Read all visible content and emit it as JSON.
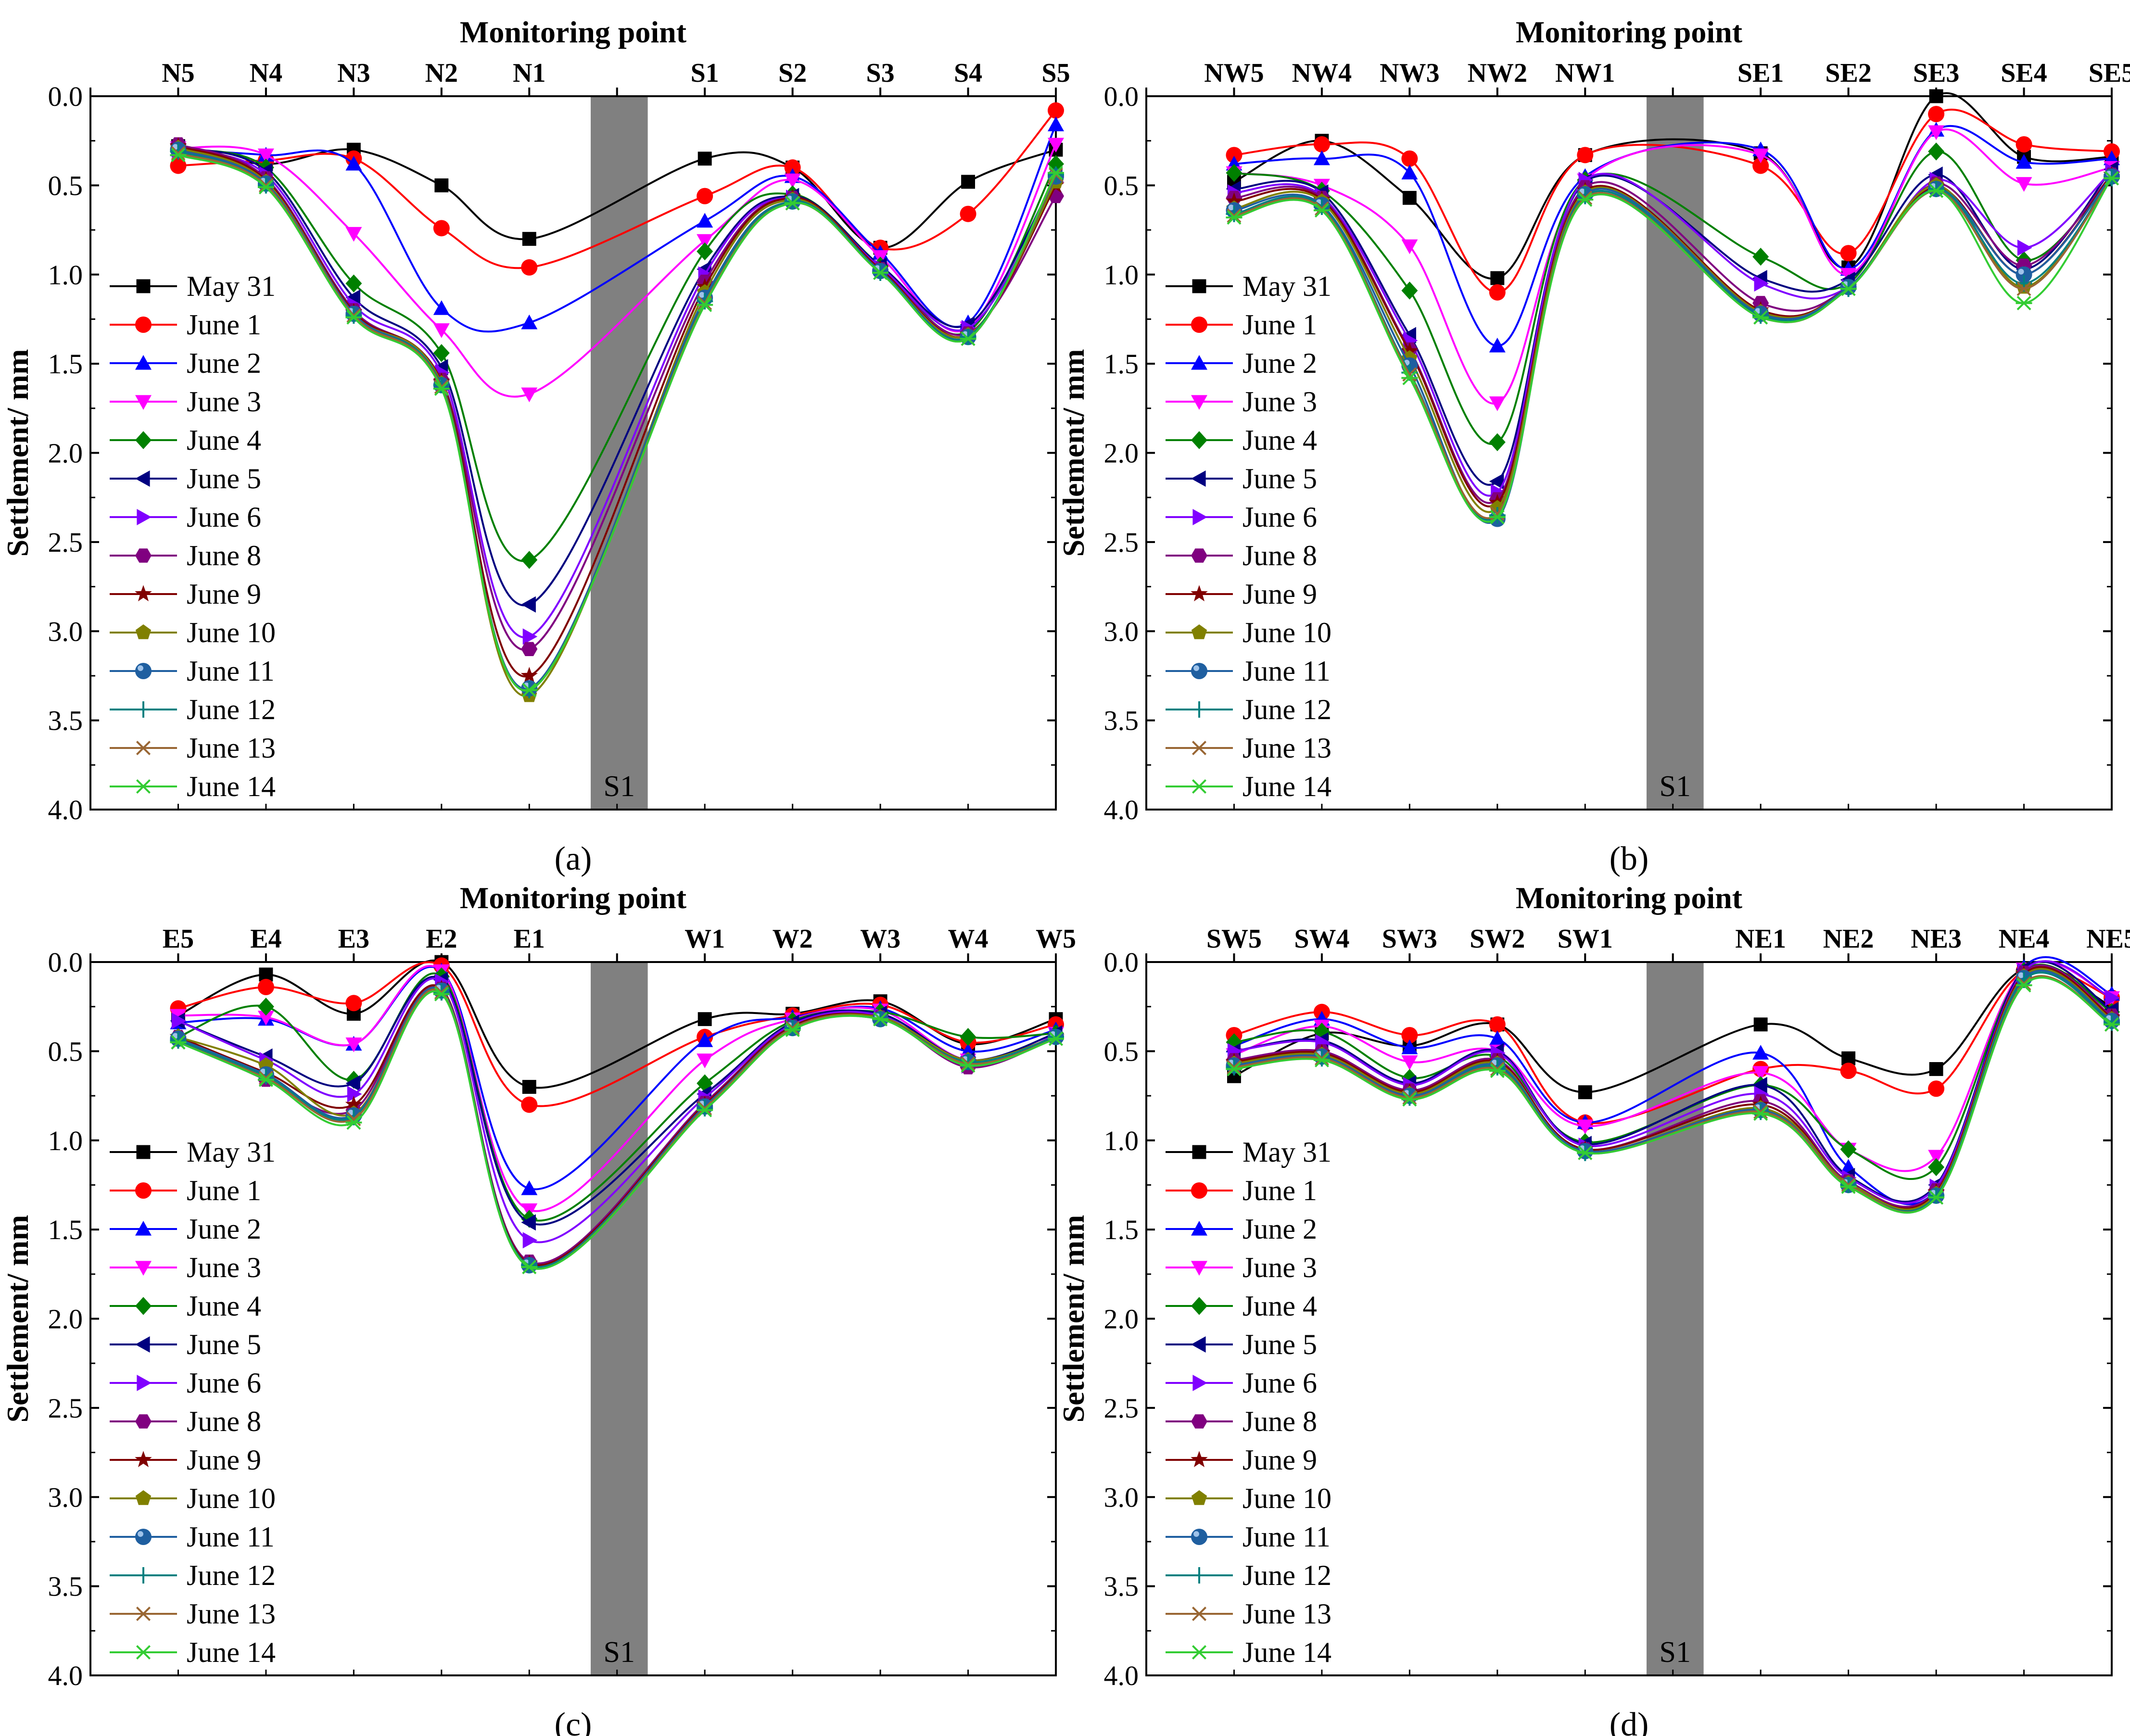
{
  "figure": {
    "x_axis_title": "Monitoring point",
    "y_axis_title": "Settlement/ mm",
    "band_label": "S1"
  },
  "legend": {
    "entries": [
      "May 31",
      "June 1",
      "June 2",
      "June 3",
      "June 4",
      "June 5",
      "June 6",
      "June 8",
      "June 9",
      "June 10",
      "June 11",
      "June 12",
      "June 13",
      "June 14"
    ]
  },
  "series_styles": [
    {
      "color": "#000000",
      "marker": "square"
    },
    {
      "color": "#ff0000",
      "marker": "circle"
    },
    {
      "color": "#0000ff",
      "marker": "triangle-up"
    },
    {
      "color": "#ff00ff",
      "marker": "triangle-down"
    },
    {
      "color": "#008000",
      "marker": "diamond"
    },
    {
      "color": "#000080",
      "marker": "triangle-left"
    },
    {
      "color": "#8000ff",
      "marker": "triangle-right"
    },
    {
      "color": "#800080",
      "marker": "hexagon"
    },
    {
      "color": "#800000",
      "marker": "star"
    },
    {
      "color": "#808000",
      "marker": "pentagon"
    },
    {
      "color": "#1f5fa0",
      "marker": "sphere"
    },
    {
      "color": "#008080",
      "marker": "plus"
    },
    {
      "color": "#996633",
      "marker": "x"
    },
    {
      "color": "#33cc33",
      "marker": "asterisk"
    }
  ],
  "chart_data": [
    {
      "type": "line",
      "panel_label": "(a)",
      "title": "",
      "xlabel": "Monitoring point",
      "ylabel": "Settlement/ mm",
      "ylim": [
        0,
        4
      ],
      "y_inverted": true,
      "yticks": [
        "0.0",
        "0.5",
        "1.0",
        "1.5",
        "2.0",
        "2.5",
        "3.0",
        "3.5",
        "4.0"
      ],
      "xlim": [
        0,
        11
      ],
      "categories": [
        "N5",
        "N4",
        "N3",
        "N2",
        "N1",
        "S1",
        "S2",
        "S3",
        "S4",
        "S5"
      ],
      "x": [
        1,
        2,
        3,
        4,
        5,
        7,
        8,
        9,
        10,
        11
      ],
      "band": {
        "label": "S1",
        "x_range": [
          5.7,
          6.35
        ]
      },
      "series": [
        {
          "name": "May 31",
          "values": [
            0.28,
            0.38,
            0.3,
            0.5,
            0.8,
            0.35,
            0.4,
            0.85,
            0.48,
            0.3
          ]
        },
        {
          "name": "June 1",
          "values": [
            0.39,
            0.36,
            0.35,
            0.74,
            0.96,
            0.56,
            0.4,
            0.85,
            0.66,
            0.08
          ]
        },
        {
          "name": "June 2",
          "values": [
            0.3,
            0.33,
            0.38,
            1.19,
            1.27,
            0.7,
            0.45,
            0.88,
            1.27,
            0.16
          ]
        },
        {
          "name": "June 3",
          "values": [
            0.29,
            0.33,
            0.77,
            1.31,
            1.67,
            0.81,
            0.47,
            0.9,
            1.3,
            0.27
          ]
        },
        {
          "name": "June 4",
          "values": [
            0.3,
            0.4,
            1.05,
            1.44,
            2.6,
            0.87,
            0.55,
            0.95,
            1.32,
            0.38
          ]
        },
        {
          "name": "June 5",
          "values": [
            0.29,
            0.42,
            1.13,
            1.52,
            2.85,
            0.97,
            0.56,
            0.95,
            1.28,
            0.45
          ]
        },
        {
          "name": "June 6",
          "values": [
            0.3,
            0.44,
            1.17,
            1.55,
            3.03,
            1.0,
            0.57,
            0.96,
            1.3,
            0.48
          ]
        },
        {
          "name": "June 8",
          "values": [
            0.27,
            0.46,
            1.2,
            1.59,
            3.1,
            1.04,
            0.57,
            0.97,
            1.33,
            0.56
          ]
        },
        {
          "name": "June 9",
          "values": [
            0.28,
            0.47,
            1.21,
            1.6,
            3.25,
            1.07,
            0.57,
            0.97,
            1.34,
            0.5
          ]
        },
        {
          "name": "June 10",
          "values": [
            0.29,
            0.48,
            1.22,
            1.61,
            3.36,
            1.1,
            0.58,
            0.98,
            1.34,
            0.48
          ]
        },
        {
          "name": "June 11",
          "values": [
            0.3,
            0.49,
            1.22,
            1.62,
            3.32,
            1.13,
            0.59,
            0.98,
            1.35,
            0.45
          ]
        },
        {
          "name": "June 12",
          "values": [
            0.31,
            0.5,
            1.23,
            1.62,
            3.33,
            1.15,
            0.59,
            0.99,
            1.35,
            0.44
          ]
        },
        {
          "name": "June 13",
          "values": [
            0.32,
            0.5,
            1.23,
            1.63,
            3.33,
            1.16,
            0.6,
            0.99,
            1.36,
            0.44
          ]
        },
        {
          "name": "June 14",
          "values": [
            0.33,
            0.51,
            1.24,
            1.64,
            3.33,
            1.17,
            0.6,
            0.99,
            1.36,
            0.43
          ]
        }
      ]
    },
    {
      "type": "line",
      "panel_label": "(b)",
      "title": "",
      "xlabel": "Monitoring point",
      "ylabel": "Settlement/ mm",
      "ylim": [
        0,
        4
      ],
      "y_inverted": true,
      "yticks": [
        "0.0",
        "0.5",
        "1.0",
        "1.5",
        "2.0",
        "2.5",
        "3.0",
        "3.5",
        "4.0"
      ],
      "xlim": [
        0,
        11
      ],
      "categories": [
        "NW5",
        "NW4",
        "NW3",
        "NW2",
        "NW1",
        "SE1",
        "SE2",
        "SE3",
        "SE4",
        "SE5"
      ],
      "x": [
        1,
        2,
        3,
        4,
        5,
        7,
        8,
        9,
        10,
        11
      ],
      "band": {
        "label": "S1",
        "x_range": [
          5.7,
          6.35
        ]
      },
      "series": [
        {
          "name": "May 31",
          "values": [
            0.48,
            0.25,
            0.57,
            1.02,
            0.33,
            0.32,
            0.96,
            0.0,
            0.34,
            0.34
          ]
        },
        {
          "name": "June 1",
          "values": [
            0.33,
            0.27,
            0.35,
            1.1,
            0.33,
            0.39,
            0.88,
            0.1,
            0.27,
            0.31
          ]
        },
        {
          "name": "June 2",
          "values": [
            0.38,
            0.35,
            0.43,
            1.4,
            0.45,
            0.3,
            0.97,
            0.19,
            0.37,
            0.35
          ]
        },
        {
          "name": "June 3",
          "values": [
            0.43,
            0.5,
            0.84,
            1.72,
            0.47,
            0.33,
            1.0,
            0.2,
            0.49,
            0.4
          ]
        },
        {
          "name": "June 4",
          "values": [
            0.43,
            0.53,
            1.09,
            1.94,
            0.47,
            0.9,
            1.05,
            0.31,
            0.92,
            0.45
          ]
        },
        {
          "name": "June 5",
          "values": [
            0.52,
            0.54,
            1.34,
            2.16,
            0.48,
            1.02,
            1.03,
            0.44,
            0.97,
            0.41
          ]
        },
        {
          "name": "June 6",
          "values": [
            0.54,
            0.56,
            1.37,
            2.22,
            0.47,
            1.05,
            1.07,
            0.47,
            0.85,
            0.42
          ]
        },
        {
          "name": "June 8",
          "values": [
            0.57,
            0.57,
            1.42,
            2.26,
            0.51,
            1.16,
            1.07,
            0.49,
            0.95,
            0.44
          ]
        },
        {
          "name": "June 9",
          "values": [
            0.59,
            0.58,
            1.43,
            2.28,
            0.53,
            1.2,
            1.07,
            0.51,
            1.0,
            0.44
          ]
        },
        {
          "name": "June 10",
          "values": [
            0.63,
            0.59,
            1.47,
            2.31,
            0.54,
            1.21,
            1.07,
            0.5,
            1.07,
            0.45
          ]
        },
        {
          "name": "June 11",
          "values": [
            0.64,
            0.61,
            1.51,
            2.37,
            0.55,
            1.22,
            1.07,
            0.52,
            1.0,
            0.45
          ]
        },
        {
          "name": "June 12",
          "values": [
            0.66,
            0.62,
            1.55,
            2.35,
            0.56,
            1.23,
            1.08,
            0.52,
            1.05,
            0.46
          ]
        },
        {
          "name": "June 13",
          "values": [
            0.67,
            0.63,
            1.56,
            2.34,
            0.57,
            1.24,
            1.08,
            0.53,
            1.08,
            0.46
          ]
        },
        {
          "name": "June 14",
          "values": [
            0.68,
            0.64,
            1.58,
            2.36,
            0.58,
            1.24,
            1.08,
            0.53,
            1.16,
            0.46
          ]
        }
      ]
    },
    {
      "type": "line",
      "panel_label": "(c)",
      "title": "",
      "xlabel": "Monitoring point",
      "ylabel": "Settlement/ mm",
      "ylim": [
        0,
        4
      ],
      "y_inverted": true,
      "yticks": [
        "0.0",
        "0.5",
        "1.0",
        "1.5",
        "2.0",
        "2.5",
        "3.0",
        "3.5",
        "4.0"
      ],
      "xlim": [
        0,
        11
      ],
      "categories": [
        "E5",
        "E4",
        "E3",
        "E2",
        "E1",
        "W1",
        "W2",
        "W3",
        "W4",
        "W5"
      ],
      "x": [
        1,
        2,
        3,
        4,
        5,
        7,
        8,
        9,
        10,
        11
      ],
      "band": {
        "label": "S1",
        "x_range": [
          5.7,
          6.35
        ]
      },
      "series": [
        {
          "name": "May 31",
          "values": [
            0.3,
            0.07,
            0.29,
            0.0,
            0.7,
            0.32,
            0.29,
            0.22,
            0.46,
            0.32
          ]
        },
        {
          "name": "June 1",
          "values": [
            0.26,
            0.14,
            0.23,
            0.02,
            0.8,
            0.42,
            0.3,
            0.24,
            0.45,
            0.35
          ]
        },
        {
          "name": "June 2",
          "values": [
            0.34,
            0.32,
            0.46,
            0.05,
            1.27,
            0.44,
            0.31,
            0.26,
            0.5,
            0.38
          ]
        },
        {
          "name": "June 3",
          "values": [
            0.3,
            0.31,
            0.46,
            0.05,
            1.39,
            0.55,
            0.32,
            0.27,
            0.55,
            0.4
          ]
        },
        {
          "name": "June 4",
          "values": [
            0.42,
            0.25,
            0.66,
            0.08,
            1.44,
            0.68,
            0.33,
            0.28,
            0.42,
            0.4
          ]
        },
        {
          "name": "June 5",
          "values": [
            0.33,
            0.53,
            0.68,
            0.1,
            1.46,
            0.74,
            0.34,
            0.29,
            0.55,
            0.4
          ]
        },
        {
          "name": "June 6",
          "values": [
            0.33,
            0.55,
            0.74,
            0.11,
            1.56,
            0.76,
            0.35,
            0.3,
            0.58,
            0.41
          ]
        },
        {
          "name": "June 8",
          "values": [
            0.42,
            0.66,
            0.83,
            0.15,
            1.68,
            0.79,
            0.36,
            0.31,
            0.59,
            0.42
          ]
        },
        {
          "name": "June 9",
          "values": [
            0.42,
            0.62,
            0.8,
            0.15,
            1.69,
            0.8,
            0.36,
            0.31,
            0.56,
            0.42
          ]
        },
        {
          "name": "June 10",
          "values": [
            0.42,
            0.58,
            0.85,
            0.16,
            1.7,
            0.81,
            0.37,
            0.31,
            0.55,
            0.42
          ]
        },
        {
          "name": "June 11",
          "values": [
            0.43,
            0.63,
            0.86,
            0.16,
            1.7,
            0.81,
            0.37,
            0.32,
            0.56,
            0.42
          ]
        },
        {
          "name": "June 12",
          "values": [
            0.44,
            0.64,
            0.87,
            0.17,
            1.7,
            0.82,
            0.37,
            0.32,
            0.56,
            0.42
          ]
        },
        {
          "name": "June 13",
          "values": [
            0.45,
            0.65,
            0.88,
            0.17,
            1.71,
            0.82,
            0.37,
            0.32,
            0.57,
            0.43
          ]
        },
        {
          "name": "June 14",
          "values": [
            0.45,
            0.66,
            0.9,
            0.18,
            1.71,
            0.83,
            0.38,
            0.32,
            0.58,
            0.43
          ]
        }
      ]
    },
    {
      "type": "line",
      "panel_label": "(d)",
      "title": "",
      "xlabel": "Monitoring point",
      "ylabel": "Settlement/ mm",
      "ylim": [
        0,
        4
      ],
      "y_inverted": true,
      "yticks": [
        "0.0",
        "0.5",
        "1.0",
        "1.5",
        "2.0",
        "2.5",
        "3.0",
        "3.5",
        "4.0"
      ],
      "xlim": [
        0,
        11
      ],
      "categories": [
        "SW5",
        "SW4",
        "SW3",
        "SW2",
        "SW1",
        "NE1",
        "NE2",
        "NE3",
        "NE4",
        "NE5"
      ],
      "x": [
        1,
        2,
        3,
        4,
        5,
        7,
        8,
        9,
        10,
        11
      ],
      "band": {
        "label": "S1",
        "x_range": [
          5.7,
          6.35
        ]
      },
      "series": [
        {
          "name": "May 31",
          "values": [
            0.64,
            0.4,
            0.47,
            0.35,
            0.73,
            0.35,
            0.54,
            0.6,
            0.04,
            0.25
          ]
        },
        {
          "name": "June 1",
          "values": [
            0.41,
            0.28,
            0.41,
            0.35,
            0.9,
            0.6,
            0.61,
            0.71,
            0.05,
            0.2
          ]
        },
        {
          "name": "June 2",
          "values": [
            0.47,
            0.32,
            0.48,
            0.43,
            0.9,
            0.51,
            1.15,
            1.28,
            0.03,
            0.18
          ]
        },
        {
          "name": "June 3",
          "values": [
            0.52,
            0.36,
            0.56,
            0.5,
            0.92,
            0.62,
            1.05,
            1.09,
            0.04,
            0.2
          ]
        },
        {
          "name": "June 4",
          "values": [
            0.45,
            0.39,
            0.65,
            0.53,
            1.01,
            0.69,
            1.05,
            1.15,
            0.05,
            0.28
          ]
        },
        {
          "name": "June 5",
          "values": [
            0.5,
            0.44,
            0.68,
            0.5,
            1.02,
            0.69,
            1.2,
            1.25,
            0.04,
            0.27
          ]
        },
        {
          "name": "June 6",
          "values": [
            0.5,
            0.45,
            0.69,
            0.51,
            1.03,
            0.74,
            1.21,
            1.26,
            0.05,
            0.2
          ]
        },
        {
          "name": "June 8",
          "values": [
            0.55,
            0.5,
            0.72,
            0.55,
            1.05,
            0.78,
            1.23,
            1.28,
            0.06,
            0.3
          ]
        },
        {
          "name": "June 9",
          "values": [
            0.56,
            0.51,
            0.73,
            0.56,
            1.05,
            0.8,
            1.24,
            1.29,
            0.07,
            0.31
          ]
        },
        {
          "name": "June 10",
          "values": [
            0.57,
            0.52,
            0.74,
            0.57,
            1.06,
            0.82,
            1.24,
            1.3,
            0.08,
            0.32
          ]
        },
        {
          "name": "June 11",
          "values": [
            0.58,
            0.53,
            0.75,
            0.58,
            1.06,
            0.83,
            1.25,
            1.31,
            0.09,
            0.33
          ]
        },
        {
          "name": "June 12",
          "values": [
            0.59,
            0.54,
            0.76,
            0.59,
            1.07,
            0.84,
            1.25,
            1.31,
            0.1,
            0.34
          ]
        },
        {
          "name": "June 13",
          "values": [
            0.59,
            0.54,
            0.76,
            0.6,
            1.07,
            0.84,
            1.25,
            1.32,
            0.12,
            0.35
          ]
        },
        {
          "name": "June 14",
          "values": [
            0.6,
            0.55,
            0.77,
            0.61,
            1.07,
            0.85,
            1.26,
            1.32,
            0.13,
            0.35
          ]
        }
      ]
    }
  ]
}
